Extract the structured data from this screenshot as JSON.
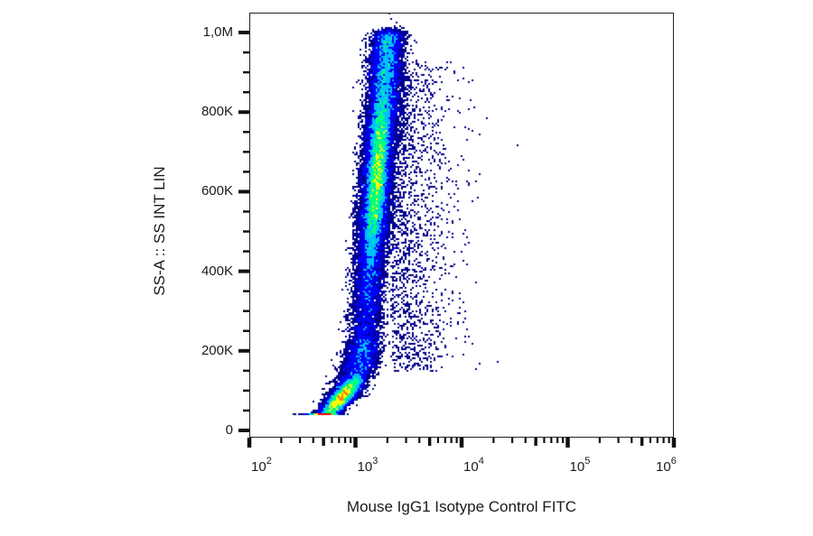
{
  "chart_data": {
    "type": "scatter",
    "subtype": "flow-cytometry-density-dot-plot",
    "title": "",
    "xlabel": "Mouse IgG1 Isotype Control FITC",
    "ylabel": "SS-A :: SS INT LIN",
    "x_scale": "log",
    "x_range": [
      100,
      1000000
    ],
    "x_ticks": [
      {
        "value": 100,
        "base": "10",
        "exp": "2"
      },
      {
        "value": 1000,
        "base": "10",
        "exp": "3"
      },
      {
        "value": 10000,
        "base": "10",
        "exp": "4"
      },
      {
        "value": 100000,
        "base": "10",
        "exp": "5"
      },
      {
        "value": 1000000,
        "base": "10",
        "exp": "6"
      }
    ],
    "y_scale": "linear",
    "y_range": [
      0,
      1050000
    ],
    "y_ticks": [
      {
        "value": 0,
        "label": "0"
      },
      {
        "value": 200000,
        "label": "200K"
      },
      {
        "value": 400000,
        "label": "400K"
      },
      {
        "value": 600000,
        "label": "600K"
      },
      {
        "value": 800000,
        "label": "800K"
      },
      {
        "value": 1000000,
        "label": "1,0M"
      }
    ],
    "grid": false,
    "legend": null,
    "color_scale": [
      "#00008b",
      "#0000ff",
      "#00bfff",
      "#00ff80",
      "#ffff00",
      "#ff8000",
      "#ff0000"
    ],
    "populations": [
      {
        "name": "main-population",
        "x_center": 1500,
        "y_range": [
          150000,
          1000000
        ],
        "peak_y": 630000,
        "peak_density": "red"
      },
      {
        "name": "low-ss-population",
        "x_center": 700,
        "y_center": 80000,
        "peak_density": "red"
      },
      {
        "name": "sparse-scatter",
        "x_range": [
          2000,
          10000
        ],
        "y_range": [
          50000,
          900000
        ],
        "peak_density": "blue"
      }
    ]
  }
}
